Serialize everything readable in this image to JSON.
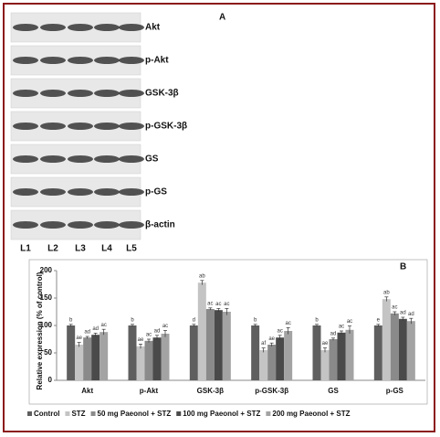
{
  "blot": {
    "panel": "A",
    "bands": [
      "Akt",
      "p-Akt",
      "GSK-3β",
      "p-GSK-3β",
      "GS",
      "p-GS",
      "β-actin"
    ],
    "lanes": [
      "L1",
      "L2",
      "L3",
      "L4",
      "L5"
    ]
  },
  "chart_data": {
    "type": "bar",
    "panel": "B",
    "ylabel": "Relative expression (% of control)",
    "categories": [
      "Akt",
      "p-Akt",
      "GSK-3β",
      "p-GSK-3β",
      "GS",
      "p-GS"
    ],
    "ylim": [
      0,
      200
    ],
    "yticks": [
      0,
      50,
      100,
      150,
      200
    ],
    "series": [
      {
        "name": "Control",
        "color": "#5f5f5f",
        "values": [
          100,
          100,
          100,
          100,
          100,
          100
        ],
        "errors": [
          2,
          2,
          2,
          2,
          2,
          2
        ],
        "letters": [
          "b",
          "b",
          "d",
          "b",
          "b",
          "e"
        ]
      },
      {
        "name": "STZ",
        "color": "#c4c4c4",
        "values": [
          65,
          62,
          178,
          55,
          55,
          148
        ],
        "errors": [
          4,
          4,
          4,
          4,
          4,
          4
        ],
        "letters": [
          "ae",
          "ae",
          "ab",
          "af",
          "ae",
          "ab"
        ]
      },
      {
        "name": "50 mg Paeonol + STZ",
        "color": "#8a8a8a",
        "values": [
          78,
          72,
          130,
          65,
          75,
          122
        ],
        "errors": [
          2,
          3,
          2,
          3,
          2,
          3
        ],
        "letters": [
          "ad",
          "ac",
          "ac",
          "ae",
          "ad",
          "ac"
        ]
      },
      {
        "name": "100 mg Paeonol + STZ",
        "color": "#4a4a4a",
        "values": [
          83,
          78,
          128,
          78,
          87,
          112
        ],
        "errors": [
          3,
          4,
          3,
          4,
          3,
          3
        ],
        "letters": [
          "ad",
          "ad",
          "ac",
          "ac",
          "ac",
          "ad"
        ]
      },
      {
        "name": "200 mg Paeonol + STZ",
        "color": "#a3a3a3",
        "values": [
          88,
          85,
          125,
          90,
          92,
          108
        ],
        "errors": [
          5,
          6,
          6,
          6,
          7,
          5
        ],
        "letters": [
          "ac",
          "ac",
          "ac",
          "ac",
          "ac",
          "ad"
        ]
      }
    ]
  }
}
